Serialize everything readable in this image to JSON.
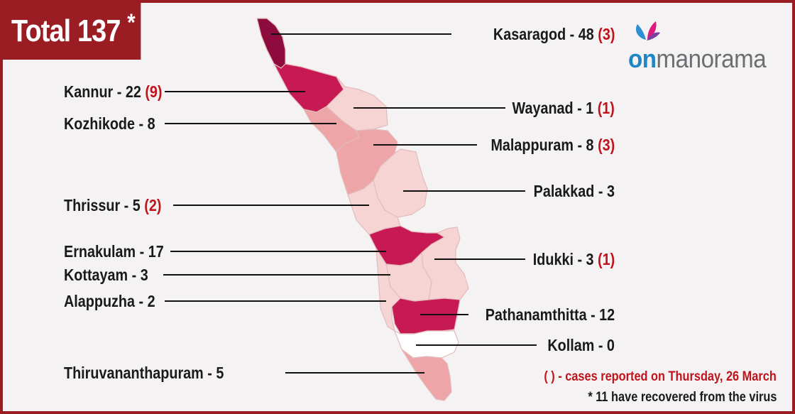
{
  "header": {
    "total_label": "Total 137",
    "asterisk": "*"
  },
  "logo": {
    "on": "on",
    "rest": "manorama"
  },
  "colors": {
    "frame": "#9b1d24",
    "very_high": "#8e0b3d",
    "high": "#c71a55",
    "medium": "#eda5a8",
    "low": "#f7d4d4",
    "zero": "#ffffff",
    "recent": "#c0141c"
  },
  "districts": [
    {
      "name": "Kasaragod",
      "cases": "48",
      "recent": "(3)",
      "side": "right",
      "fill": "#8e0b3d"
    },
    {
      "name": "Kannur",
      "cases": "22",
      "recent": "(9)",
      "side": "left",
      "fill": "#c71a55"
    },
    {
      "name": "Wayanad",
      "cases": "1",
      "recent": "(1)",
      "side": "right",
      "fill": "#f7d4d4"
    },
    {
      "name": "Kozhikode",
      "cases": "8",
      "recent": "",
      "side": "left",
      "fill": "#eda5a8"
    },
    {
      "name": "Malappuram",
      "cases": "8",
      "recent": "(3)",
      "side": "right",
      "fill": "#eda5a8"
    },
    {
      "name": "Palakkad",
      "cases": "3",
      "recent": "",
      "side": "right",
      "fill": "#f7d4d4"
    },
    {
      "name": "Thrissur",
      "cases": "5",
      "recent": "(2)",
      "side": "left",
      "fill": "#f7d4d4"
    },
    {
      "name": "Ernakulam",
      "cases": "17",
      "recent": "",
      "side": "left",
      "fill": "#c71a55"
    },
    {
      "name": "Idukki",
      "cases": "3",
      "recent": "(1)",
      "side": "right",
      "fill": "#f7d4d4"
    },
    {
      "name": "Kottayam",
      "cases": "3",
      "recent": "",
      "side": "left",
      "fill": "#f7d4d4"
    },
    {
      "name": "Alappuzha",
      "cases": "2",
      "recent": "",
      "side": "left",
      "fill": "#f7d4d4"
    },
    {
      "name": "Pathanamthitta",
      "cases": "12",
      "recent": "",
      "side": "right",
      "fill": "#c71a55"
    },
    {
      "name": "Kollam",
      "cases": "0",
      "recent": "",
      "side": "right",
      "fill": "#ffffff"
    },
    {
      "name": "Thiruvananthapuram",
      "cases": "5",
      "recent": "",
      "side": "left",
      "fill": "#eda5a8"
    }
  ],
  "notes": {
    "recent_cases": "( ) - cases reported on Thursday, 26 March",
    "recovered": "* 11 have recovered from the virus"
  }
}
